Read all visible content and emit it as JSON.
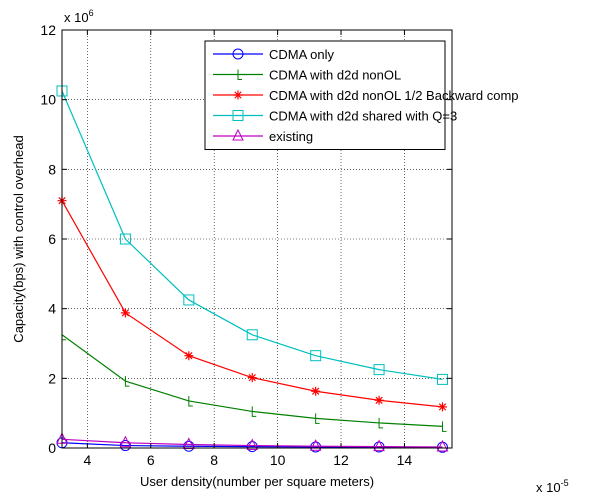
{
  "chart_data": {
    "type": "line",
    "title": "",
    "xlabel": "User density(number per square meters)",
    "ylabel": "Capacity(bps) with control overhead",
    "x_multiplier": {
      "base": "x 10",
      "exponent": "-5"
    },
    "y_multiplier": {
      "base": "x 10",
      "exponent": "6"
    },
    "xlim": [
      3.2,
      15.5
    ],
    "ylim": [
      0,
      12
    ],
    "xticks": [
      4,
      6,
      8,
      10,
      12,
      14
    ],
    "yticks": [
      0,
      2,
      4,
      6,
      8,
      10,
      12
    ],
    "grid": true,
    "legend_position": "top-right",
    "x": [
      3.2,
      5.2,
      7.2,
      9.2,
      11.2,
      13.2,
      15.2
    ],
    "series": [
      {
        "name": "CDMA only",
        "color": "#0000ff",
        "marker": "circle",
        "values": [
          0.15,
          0.07,
          0.05,
          0.04,
          0.03,
          0.03,
          0.02
        ]
      },
      {
        "name": "CDMA with d2d nonOL",
        "color": "#008000",
        "marker": "tick",
        "values": [
          3.25,
          1.92,
          1.35,
          1.05,
          0.85,
          0.72,
          0.62
        ]
      },
      {
        "name": "CDMA with d2d nonOL 1/2 Backward comp",
        "color": "#ff0000",
        "marker": "star",
        "values": [
          7.1,
          3.88,
          2.65,
          2.02,
          1.63,
          1.37,
          1.18
        ]
      },
      {
        "name": "CDMA with d2d shared with Q=3",
        "color": "#00bfbf",
        "marker": "square",
        "values": [
          10.25,
          6.0,
          4.25,
          3.25,
          2.65,
          2.25,
          1.97
        ]
      },
      {
        "name": "existing",
        "color": "#bf00bf",
        "marker": "triangle",
        "values": [
          0.25,
          0.15,
          0.1,
          0.07,
          0.05,
          0.04,
          0.03
        ]
      }
    ]
  }
}
